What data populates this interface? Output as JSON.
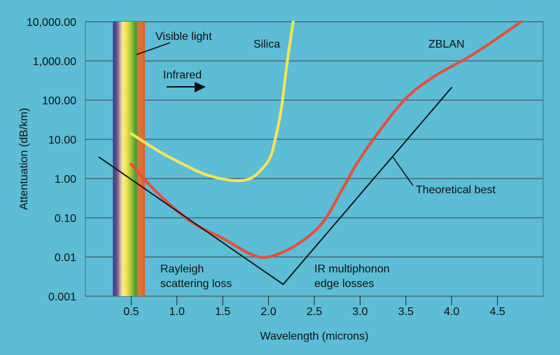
{
  "chart_data": {
    "type": "line",
    "title": "",
    "xlabel": "Wavelength (microns)",
    "ylabel": "Attentuation (dB/km)",
    "xlim": [
      0,
      5.0
    ],
    "ylim": [
      0.001,
      10000
    ],
    "yscale": "log",
    "grid": "horizontal",
    "x_ticks": [
      0.5,
      1.0,
      1.5,
      2.0,
      2.5,
      3.0,
      3.5,
      4.0,
      4.5
    ],
    "x_tick_labels": [
      "0.5",
      "1.0",
      "1.5",
      "2.0",
      "2.5",
      "3.0",
      "3.5",
      "4.0",
      "4.5"
    ],
    "y_ticks": [
      0.001,
      0.01,
      0.1,
      1,
      10,
      100,
      1000,
      10000
    ],
    "y_tick_labels": [
      "0.001",
      "0.01",
      "0.10",
      "1.00",
      "10.00",
      "100.00",
      "1,000.00",
      "10,000.00"
    ],
    "background_color": "#5dbcd6",
    "visible_band": {
      "label": "Visible light",
      "range": [
        0.3,
        0.65
      ]
    },
    "series": [
      {
        "name": "Silica",
        "color": "#f2e55a",
        "x": [
          0.5,
          0.8,
          1.0,
          1.3,
          1.6,
          1.8,
          1.95,
          2.03,
          2.08,
          2.14,
          2.2,
          2.27
        ],
        "y": [
          14,
          5,
          2.8,
          1.3,
          0.9,
          1.0,
          2,
          4,
          12,
          60,
          800,
          10000
        ]
      },
      {
        "name": "ZBLAN",
        "color": "#e4503a",
        "x": [
          0.5,
          0.8,
          1.17,
          1.5,
          1.8,
          2.0,
          2.3,
          2.58,
          2.8,
          2.96,
          3.2,
          3.5,
          3.8,
          4.26,
          4.76
        ],
        "y": [
          2.3,
          0.4,
          0.075,
          0.03,
          0.012,
          0.01,
          0.02,
          0.07,
          0.5,
          2.3,
          15,
          110,
          390,
          1600,
          10000
        ]
      },
      {
        "name": "Theoretical best",
        "color": "#111111",
        "x": [
          0.15,
          2.16,
          4.0
        ],
        "y": [
          3.5,
          0.002,
          210
        ]
      }
    ],
    "annotations": {
      "visible_light": "Visible light",
      "infrared": "Infrared",
      "silica": "Silica",
      "zblan": "ZBLAN",
      "theoretical_best": "Theoretical best",
      "rayleigh_1": "Rayleigh",
      "rayleigh_2": "scattering loss",
      "ir_1": "IR multiphonon",
      "ir_2": "edge losses"
    }
  }
}
